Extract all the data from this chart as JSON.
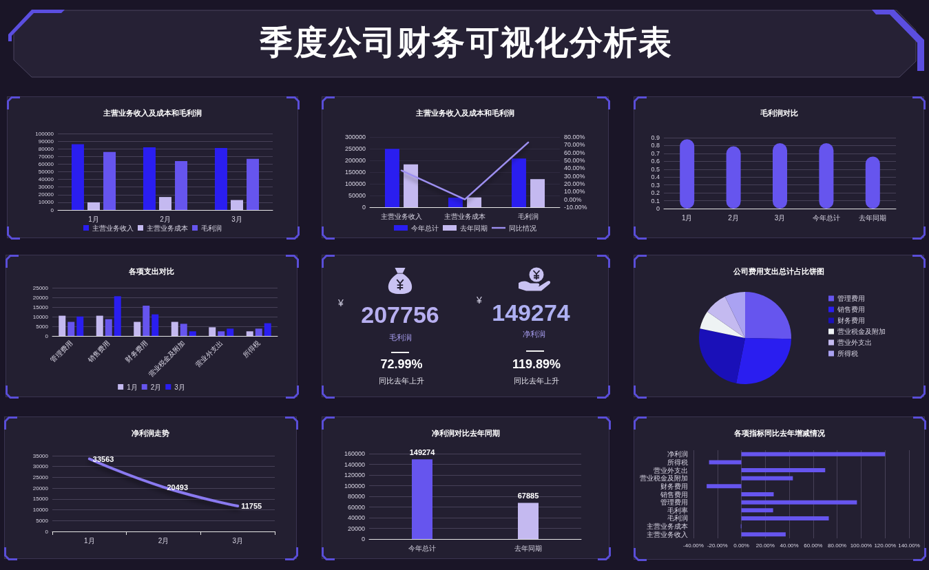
{
  "chart_data": [
    {
      "type": "other",
      "title": "季度公司财务可视化分析表"
    },
    {
      "type": "bar",
      "title": "主营业务收入及成本和毛利润",
      "categories": [
        "1月",
        "2月",
        "3月"
      ],
      "series": [
        {
          "name": "主营业务收入",
          "color": "#2a1ef0",
          "values": [
            86000,
            82000,
            81000
          ]
        },
        {
          "name": "主营业务成本",
          "color": "#c4b9f0",
          "values": [
            10000,
            17000,
            13000
          ]
        },
        {
          "name": "毛利润",
          "color": "#6655ee",
          "values": [
            76000,
            64000,
            67000
          ]
        }
      ],
      "ylim": [
        0,
        100000
      ],
      "yticks": [
        0,
        10000,
        20000,
        30000,
        40000,
        50000,
        60000,
        70000,
        80000,
        90000,
        100000
      ],
      "grid": "y",
      "legend": "bottom"
    },
    {
      "type": "bar",
      "title": "主营业务收入及成本和毛利润",
      "categories": [
        "主营业务收入",
        "主营业务成本",
        "毛利润"
      ],
      "series": [
        {
          "name": "今年总计",
          "color": "#2a1ef0",
          "values": [
            249000,
            41000,
            208000
          ]
        },
        {
          "name": "去年同期",
          "color": "#c4b9f0",
          "values": [
            183000,
            42000,
            120000
          ]
        },
        {
          "name": "同比情况",
          "type": "line",
          "axis": "y2",
          "color": "#9d8ff0",
          "values": [
            37,
            0,
            73
          ]
        }
      ],
      "ylim": [
        0,
        300000
      ],
      "yticks": [
        0,
        50000,
        100000,
        150000,
        200000,
        250000,
        300000
      ],
      "y2lim": [
        -10,
        80
      ],
      "y2ticks": [
        {
          "value": -10,
          "label": "-10.00%"
        },
        {
          "value": 0,
          "label": "0.00%"
        },
        {
          "value": 10,
          "label": "10.00%"
        },
        {
          "value": 20,
          "label": "20.00%"
        },
        {
          "value": 30,
          "label": "30.00%"
        },
        {
          "value": 40,
          "label": "40.00%"
        },
        {
          "value": 50,
          "label": "50.00%"
        },
        {
          "value": 60,
          "label": "60.00%"
        },
        {
          "value": 70,
          "label": "70.00%"
        },
        {
          "value": 80,
          "label": "80.00%"
        }
      ],
      "grid": "y",
      "legend": "bottom",
      "marker": "none"
    },
    {
      "type": "bar",
      "title": "毛利润对比",
      "categories": [
        "1月",
        "2月",
        "3月",
        "今年总计",
        "去年同期"
      ],
      "values": [
        0.88,
        0.79,
        0.83,
        0.83,
        0.66
      ],
      "color": "#6655ee",
      "ylim": [
        0,
        0.9
      ],
      "yticks": [
        0,
        0.1,
        0.2,
        0.3,
        0.4,
        0.5,
        0.6,
        0.7,
        0.8,
        0.9
      ],
      "grid": "y"
    },
    {
      "type": "bar",
      "title": "各项支出对比",
      "categories": [
        "管理费用",
        "销售费用",
        "财务费用",
        "营业税金及附加",
        "营业外支出",
        "所得税"
      ],
      "series": [
        {
          "name": "1月",
          "color": "#c4b9f0",
          "values": [
            10500,
            10500,
            7300,
            7300,
            4500,
            2400
          ]
        },
        {
          "name": "2月",
          "color": "#6655ee",
          "values": [
            7300,
            8700,
            15700,
            6300,
            2400,
            3800
          ]
        },
        {
          "name": "3月",
          "color": "#2a1ef0",
          "values": [
            10100,
            20600,
            11200,
            2400,
            3800,
            6600
          ]
        }
      ],
      "ylim": [
        0,
        25000
      ],
      "yticks": [
        0,
        5000,
        10000,
        15000,
        20000,
        25000
      ],
      "grid": "y",
      "legend": "bottom"
    },
    {
      "type": "other",
      "annotations": [
        "¥",
        "207756",
        "毛利润",
        "72.99%",
        "同比去年上升",
        "¥",
        "149274",
        "净利润",
        "119.89%",
        "同比去年上升"
      ]
    },
    {
      "type": "pie",
      "title": "公司费用支出总计占比饼图",
      "categories": [
        "管理费用",
        "销售费用",
        "财务费用",
        "营业税金及附加",
        "营业外支出",
        "所得税"
      ],
      "values": [
        25.3,
        27.8,
        25.2,
        6.4,
        8.1,
        7.2
      ],
      "colors": [
        "#6655ee",
        "#2a1ef0",
        "#1a10b8",
        "#eef3f4",
        "#c4baf0",
        "#aaa2f2"
      ],
      "legend": "right"
    },
    {
      "type": "line",
      "title": "净利润走势",
      "categories": [
        "1月",
        "2月",
        "3月"
      ],
      "values": [
        33563,
        20493,
        11755
      ],
      "color": "#8a7af0",
      "ylim": [
        0,
        35000
      ],
      "yticks": [
        0,
        5000,
        10000,
        15000,
        20000,
        25000,
        30000,
        35000
      ],
      "grid": "y",
      "data_labels": true,
      "marker": "none"
    },
    {
      "type": "bar",
      "title": "净利润对比去年同期",
      "categories": [
        "今年总计",
        "去年同期"
      ],
      "values": [
        149274,
        67885
      ],
      "colors": [
        "#6655ee",
        "#c4b9f0"
      ],
      "ylim": [
        0,
        160000
      ],
      "yticks": [
        0,
        20000,
        40000,
        60000,
        80000,
        100000,
        120000,
        140000,
        160000
      ],
      "grid": "y",
      "data_labels": true
    },
    {
      "type": "bar",
      "orientation": "horizontal",
      "title": "各项指标同比去年增减情况",
      "categories": [
        "净利润",
        "所得税",
        "营业外支出",
        "营业税金及附加",
        "财务费用",
        "销售费用",
        "管理费用",
        "毛利率",
        "毛利润",
        "主营业务成本",
        "主营业务收入"
      ],
      "values": [
        120,
        -27,
        70,
        43,
        -29,
        27,
        96.5,
        26.5,
        73,
        -0.5,
        37
      ],
      "color": "#6655ee",
      "xlim": [
        -40,
        140
      ],
      "xticks": [
        {
          "value": -40,
          "label": "-40.00%"
        },
        {
          "value": -20,
          "label": "-20.00%"
        },
        {
          "value": 0,
          "label": "0.00%"
        },
        {
          "value": 20,
          "label": "20.00%"
        },
        {
          "value": 40,
          "label": "40.00%"
        },
        {
          "value": 60,
          "label": "60.00%"
        },
        {
          "value": 80,
          "label": "80.00%"
        },
        {
          "value": 100,
          "label": "100.00%"
        },
        {
          "value": 120,
          "label": "120.00%"
        },
        {
          "value": 140,
          "label": "140.00%"
        }
      ],
      "grid": "x"
    }
  ]
}
